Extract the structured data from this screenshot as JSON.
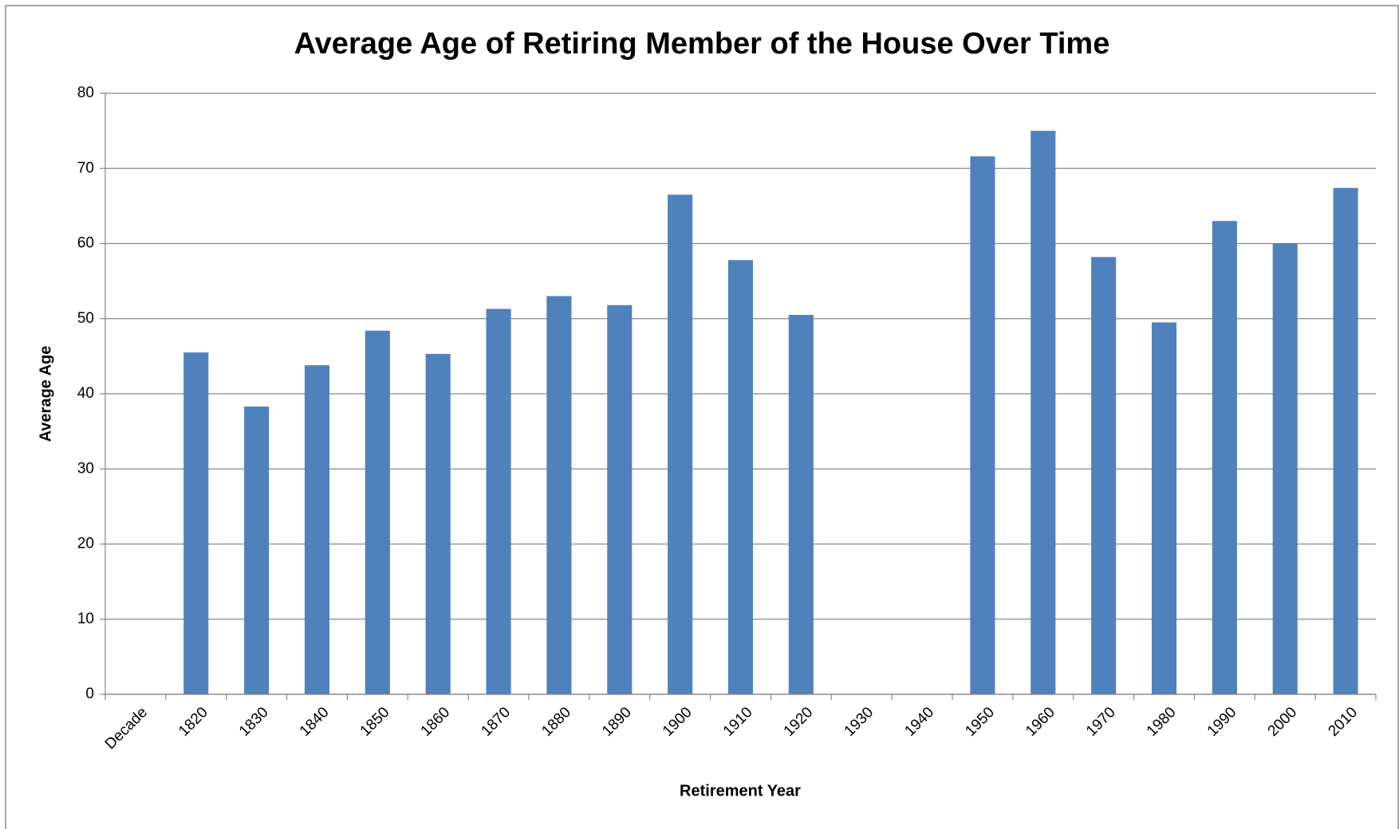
{
  "chart_data": {
    "type": "bar",
    "title": "Average Age of Retiring Member of the House Over Time",
    "x_label": "Retirement Year",
    "y_label": "Average Age",
    "categories": [
      "Decade",
      "1820",
      "1830",
      "1840",
      "1850",
      "1860",
      "1870",
      "1880",
      "1890",
      "1900",
      "1910",
      "1920",
      "1930",
      "1940",
      "1950",
      "1960",
      "1970",
      "1980",
      "1990",
      "2000",
      "2010"
    ],
    "values": [
      null,
      45.5,
      38.3,
      43.8,
      48.4,
      45.3,
      51.3,
      53,
      51.8,
      66.5,
      57.8,
      50.5,
      null,
      null,
      71.6,
      75,
      58.2,
      49.5,
      63,
      60,
      67.4
    ],
    "color": "#4f81bd",
    "ylim": [
      0,
      80
    ],
    "yticks": [
      0,
      10,
      20,
      30,
      40,
      50,
      60,
      70,
      80
    ],
    "grid": true
  }
}
